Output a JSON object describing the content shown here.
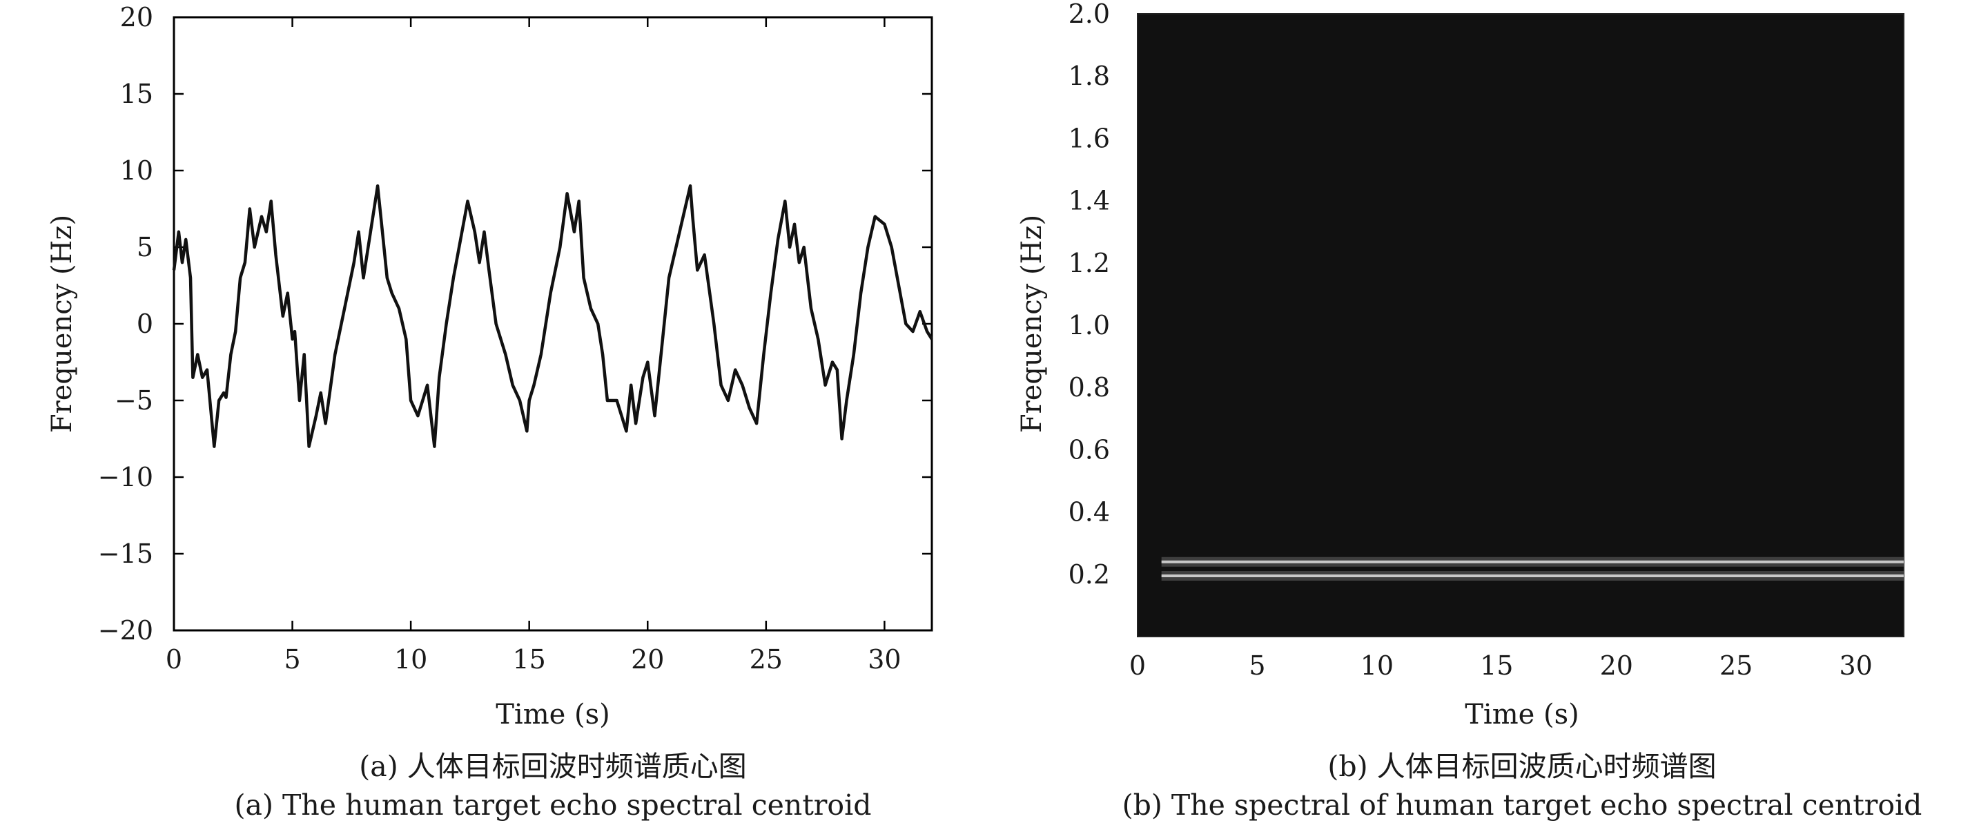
{
  "chart_data": [
    {
      "type": "line",
      "panel": "a",
      "xlabel": "Time (s)",
      "ylabel": "Frequency (Hz)",
      "xlim": [
        0,
        32
      ],
      "ylim": [
        -20,
        20
      ],
      "xticks": [
        "0",
        "5",
        "10",
        "15",
        "20",
        "25",
        "30"
      ],
      "yticks": [
        "20",
        "15",
        "10",
        "5",
        "0",
        "−5",
        "−10",
        "−15",
        "−20"
      ],
      "grid": false,
      "series": [
        {
          "color": "#111111",
          "x": [
            0,
            0.2,
            0.35,
            0.5,
            0.7,
            0.8,
            1.0,
            1.2,
            1.4,
            1.7,
            1.9,
            2.1,
            2.2,
            2.4,
            2.6,
            2.8,
            3.0,
            3.2,
            3.4,
            3.7,
            3.9,
            4.1,
            4.3,
            4.6,
            4.8,
            5.0,
            5.1,
            5.3,
            5.5,
            5.7,
            6.0,
            6.2,
            6.4,
            6.8,
            7.2,
            7.6,
            7.8,
            8.0,
            8.3,
            8.6,
            8.8,
            9.0,
            9.2,
            9.5,
            9.8,
            10.0,
            10.3,
            10.5,
            10.7,
            11.0,
            11.2,
            11.5,
            11.8,
            12.1,
            12.4,
            12.7,
            12.9,
            13.1,
            13.3,
            13.6,
            14.0,
            14.3,
            14.6,
            14.9,
            15.0,
            15.2,
            15.5,
            15.9,
            16.3,
            16.6,
            16.9,
            17.1,
            17.3,
            17.6,
            17.9,
            18.1,
            18.3,
            18.7,
            19.1,
            19.3,
            19.5,
            19.8,
            20.0,
            20.3,
            20.6,
            20.9,
            21.2,
            21.5,
            21.8,
            21.9,
            22.1,
            22.4,
            22.8,
            23.1,
            23.4,
            23.7,
            24.0,
            24.3,
            24.6,
            24.9,
            25.2,
            25.5,
            25.8,
            26.0,
            26.2,
            26.4,
            26.6,
            26.9,
            27.2,
            27.5,
            27.8,
            28.0,
            28.2,
            28.4,
            28.7,
            29.0,
            29.3,
            29.6,
            30.0,
            30.3,
            30.6,
            30.9,
            31.2,
            31.5,
            31.8,
            32.0
          ],
          "y": [
            3.5,
            6,
            4,
            5.5,
            3,
            -3.5,
            -2,
            -3.5,
            -3,
            -8,
            -5,
            -4.5,
            -4.8,
            -2,
            -0.5,
            3,
            4,
            7.5,
            5,
            7,
            6,
            8,
            4.5,
            0.5,
            2,
            -1,
            -0.5,
            -5,
            -2,
            -8,
            -6,
            -4.5,
            -6.5,
            -2,
            1,
            4,
            6,
            3,
            6,
            9,
            6,
            3,
            2,
            1,
            -1,
            -5,
            -6,
            -5,
            -4,
            -8,
            -3.5,
            0,
            3,
            5.5,
            8,
            6,
            4,
            6,
            3.5,
            0,
            -2,
            -4,
            -5,
            -7,
            -5,
            -4,
            -2,
            2,
            5,
            8.5,
            6,
            8,
            3,
            1,
            0,
            -2,
            -5,
            -5,
            -7,
            -4,
            -6.5,
            -3.5,
            -2.5,
            -6,
            -1.5,
            3,
            5,
            7,
            9,
            7,
            3.5,
            4.5,
            0,
            -4,
            -5,
            -3,
            -4,
            -5.5,
            -6.5,
            -2,
            2,
            5.5,
            8,
            5,
            6.5,
            4,
            5,
            1,
            -1,
            -4,
            -2.5,
            -3,
            -7.5,
            -5,
            -2,
            2,
            5,
            7,
            6.5,
            5,
            2.5,
            0,
            -0.5,
            0.8,
            -0.5,
            -1
          ]
        }
      ]
    },
    {
      "type": "heatmap",
      "panel": "b",
      "xlabel": "Time (s)",
      "ylabel": "Frequency (Hz)",
      "xlim": [
        0,
        32
      ],
      "ylim": [
        0,
        2.0
      ],
      "xticks": [
        "0",
        "5",
        "10",
        "15",
        "20",
        "25",
        "30"
      ],
      "yticks": [
        "2.0",
        "1.8",
        "1.6",
        "1.4",
        "1.2",
        "1.0",
        "0.8",
        "0.6",
        "0.4",
        "0.2"
      ],
      "grid": false,
      "background_color": "#111111",
      "line_color": "#c8c8c8",
      "bands": [
        {
          "frequency_hz": 0.24,
          "x_start": 1,
          "x_end": 32
        },
        {
          "frequency_hz": 0.195,
          "x_start": 1,
          "x_end": 32
        }
      ]
    }
  ],
  "captions": {
    "a_zh": "(a) 人体目标回波时频谱质心图",
    "a_en": "(a) The human target echo spectral centroid",
    "b_zh": "(b) 人体目标回波质心时频谱图",
    "b_en": "(b) The spectral of human target echo spectral centroid"
  }
}
